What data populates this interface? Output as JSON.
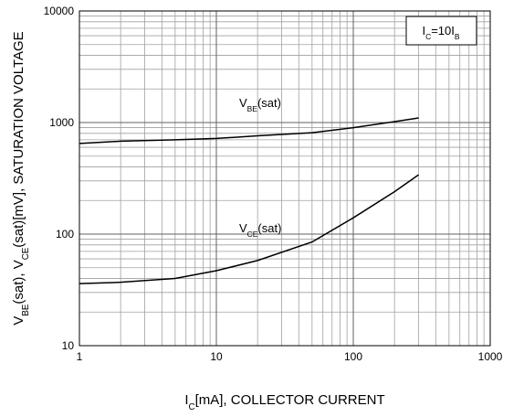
{
  "chart_data": {
    "type": "line",
    "xlabel": [
      {
        "text": "I"
      },
      {
        "text": "C",
        "sub": true
      },
      {
        "text": "[mA], COLLECTOR CURRENT"
      }
    ],
    "ylabel": [
      {
        "text": "V"
      },
      {
        "text": "BE",
        "sub": true
      },
      {
        "text": "(sat),  V"
      },
      {
        "text": "CE",
        "sub": true
      },
      {
        "text": "(sat)[mV], SATURATION VOLTAGE"
      }
    ],
    "annotation": [
      {
        "text": "I"
      },
      {
        "text": "C",
        "sub": true
      },
      {
        "text": "=10I"
      },
      {
        "text": "B",
        "sub": true
      }
    ],
    "xscale": "log",
    "yscale": "log",
    "xlim": [
      1,
      1000
    ],
    "ylim": [
      10,
      10000
    ],
    "xticks": [
      1,
      10,
      100,
      1000
    ],
    "yticks": [
      10,
      100,
      1000,
      10000
    ],
    "grid": true,
    "color": "#000000",
    "series": [
      {
        "name": [
          {
            "text": "V"
          },
          {
            "text": "BE",
            "sub": true
          },
          {
            "text": "(sat)"
          }
        ],
        "color": "#000000",
        "x": [
          1,
          2,
          5,
          10,
          20,
          50,
          100,
          200,
          300
        ],
        "values": [
          650,
          680,
          700,
          720,
          760,
          810,
          900,
          1020,
          1100
        ]
      },
      {
        "name": [
          {
            "text": "V"
          },
          {
            "text": "CE",
            "sub": true
          },
          {
            "text": "(sat)"
          }
        ],
        "color": "#000000",
        "x": [
          1,
          2,
          5,
          10,
          20,
          50,
          100,
          200,
          300
        ],
        "values": [
          36,
          37,
          40,
          47,
          58,
          85,
          140,
          240,
          340
        ]
      }
    ]
  }
}
